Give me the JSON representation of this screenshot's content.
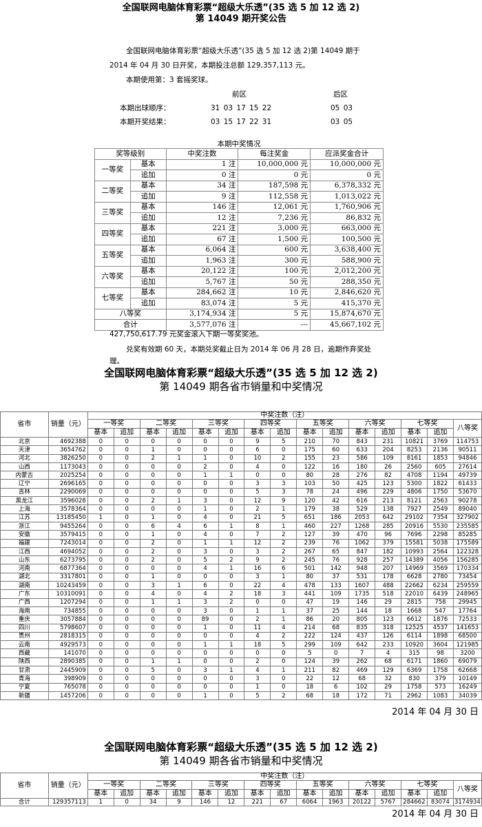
{
  "announcement": {
    "title1": "全国联网电脑体育彩票“超级大乐透”(35 选 5 加 12 选 2)",
    "title2": "第 14049 期开奖公告",
    "para1": "全国联网电脑体育彩票“超级大乐透”(35 选 5 加 12 选 2)第 14049 期于",
    "para2": "2014 年 04 月 30 日开奖，本期投注总额 129,357,113 元。",
    "para3": "本期使用第：3 套摇奖球。",
    "front_label": "前区",
    "back_label": "后区",
    "order_label": "本期出球顺序：",
    "order_front": "31 03 17 15 22",
    "order_back": "05 03",
    "result_label": "本期开奖结果：",
    "result_front": "03 15 17 22 31",
    "result_back": "03 05"
  },
  "prize_table": {
    "caption": "本期中奖情况",
    "headers": [
      "奖等级别",
      "中奖注数",
      "每注奖金",
      "应派奖金合计"
    ],
    "rows": [
      {
        "level": "一等奖",
        "type": "基本",
        "count": "1 注",
        "each": "10,000,000 元",
        "total": "10,000,000 元"
      },
      {
        "level": "一等奖",
        "type": "追加",
        "count": "0 注",
        "each": "0 元",
        "total": "0 元"
      },
      {
        "level": "二等奖",
        "type": "基本",
        "count": "34 注",
        "each": "187,598 元",
        "total": "6,378,332 元"
      },
      {
        "level": "二等奖",
        "type": "追加",
        "count": "9 注",
        "each": "112,558 元",
        "total": "1,013,022 元"
      },
      {
        "level": "三等奖",
        "type": "基本",
        "count": "146 注",
        "each": "12,061 元",
        "total": "1,760,906 元"
      },
      {
        "level": "三等奖",
        "type": "追加",
        "count": "12 注",
        "each": "7,236 元",
        "total": "86,832 元"
      },
      {
        "level": "四等奖",
        "type": "基本",
        "count": "221 注",
        "each": "3,000 元",
        "total": "663,000 元"
      },
      {
        "level": "四等奖",
        "type": "追加",
        "count": "67 注",
        "each": "1,500 元",
        "total": "100,500 元"
      },
      {
        "level": "五等奖",
        "type": "基本",
        "count": "6,064 注",
        "each": "600 元",
        "total": "3,638,400 元"
      },
      {
        "level": "五等奖",
        "type": "追加",
        "count": "1,963 注",
        "each": "300 元",
        "total": "588,900 元"
      },
      {
        "level": "六等奖",
        "type": "基本",
        "count": "20,122 注",
        "each": "100 元",
        "total": "2,012,200 元"
      },
      {
        "level": "六等奖",
        "type": "追加",
        "count": "5,767 注",
        "each": "50 元",
        "total": "288,350 元"
      },
      {
        "level": "七等奖",
        "type": "基本",
        "count": "284,662 注",
        "each": "10 元",
        "total": "2,846,620 元"
      },
      {
        "level": "七等奖",
        "type": "追加",
        "count": "83,074 注",
        "each": "5 元",
        "total": "415,370 元"
      },
      {
        "level": "八等奖",
        "type": "",
        "count": "3,174,934 注",
        "each": "5 元",
        "total": "15,874,670 元"
      },
      {
        "level": "合计",
        "type": "",
        "count": "3,577,076 注",
        "each": "---",
        "total": "45,667,102 元"
      }
    ],
    "pool_note": "427,750,617.79 元奖金滚入下期一等奖奖池。",
    "expiry_note1": "兑奖有效期 60 天，本期兑奖截止日为 2014 年 06 月 28 日，逾期作弃奖处",
    "expiry_note2": "理。"
  },
  "province_section": {
    "title1": "全国联网电脑体育彩票“超级大乐透”(35 选 5 加 12 选 2)",
    "title2": "第 14049 期各省市销量和中奖情况",
    "col_province": "省市",
    "col_sales": "销量（元）",
    "col_group": "中奖注数（注）",
    "levels": [
      "一等奖",
      "二等奖",
      "三等奖",
      "四等奖",
      "五等奖",
      "六等奖",
      "七等奖"
    ],
    "eighth": "八等奖",
    "basic": "基本",
    "extra": "追加",
    "rows": [
      [
        "北京",
        "4692388",
        "0",
        "0",
        "0",
        "0",
        "0",
        "0",
        "9",
        "5",
        "210",
        "70",
        "843",
        "231",
        "10821",
        "3769",
        "114753"
      ],
      [
        "天津",
        "3654762",
        "0",
        "0",
        "1",
        "0",
        "0",
        "0",
        "6",
        "0",
        "175",
        "60",
        "633",
        "204",
        "8253",
        "2136",
        "90511"
      ],
      [
        "河北",
        "3826250",
        "0",
        "0",
        "2",
        "1",
        "1",
        "0",
        "10",
        "2",
        "155",
        "23",
        "586",
        "109",
        "8161",
        "1853",
        "94846"
      ],
      [
        "山西",
        "1173043",
        "0",
        "0",
        "0",
        "0",
        "2",
        "0",
        "4",
        "0",
        "122",
        "16",
        "180",
        "26",
        "2560",
        "605",
        "27614"
      ],
      [
        "内蒙古",
        "2025254",
        "0",
        "0",
        "0",
        "0",
        "1",
        "1",
        "0",
        "0",
        "80",
        "28",
        "276",
        "82",
        "4708",
        "1194",
        "49739"
      ],
      [
        "辽宁",
        "2696165",
        "0",
        "0",
        "0",
        "0",
        "0",
        "0",
        "3",
        "3",
        "103",
        "50",
        "425",
        "123",
        "5300",
        "1822",
        "61433"
      ],
      [
        "吉林",
        "2290069",
        "0",
        "0",
        "0",
        "0",
        "0",
        "0",
        "5",
        "3",
        "78",
        "24",
        "496",
        "229",
        "4806",
        "1750",
        "53670"
      ],
      [
        "黑龙江",
        "3596028",
        "0",
        "0",
        "2",
        "1",
        "3",
        "0",
        "12",
        "9",
        "120",
        "42",
        "616",
        "213",
        "8121",
        "2563",
        "90278"
      ],
      [
        "上海",
        "3578364",
        "0",
        "0",
        "0",
        "0",
        "1",
        "0",
        "2",
        "1",
        "179",
        "38",
        "529",
        "138",
        "7927",
        "2549",
        "89040"
      ],
      [
        "江苏",
        "13185450",
        "1",
        "0",
        "1",
        "0",
        "4",
        "0",
        "21",
        "5",
        "651",
        "186",
        "2053",
        "642",
        "29102",
        "7354",
        "327902"
      ],
      [
        "浙江",
        "9455264",
        "0",
        "0",
        "6",
        "4",
        "6",
        "1",
        "8",
        "1",
        "460",
        "227",
        "1268",
        "285",
        "20916",
        "5530",
        "235585"
      ],
      [
        "安徽",
        "3579415",
        "0",
        "0",
        "1",
        "0",
        "4",
        "0",
        "7",
        "2",
        "127",
        "39",
        "470",
        "96",
        "7696",
        "2298",
        "85285"
      ],
      [
        "福建",
        "7243014",
        "0",
        "0",
        "2",
        "0",
        "1",
        "1",
        "12",
        "2",
        "239",
        "76",
        "1062",
        "379",
        "15581",
        "5038",
        "175589"
      ],
      [
        "江西",
        "4694052",
        "0",
        "0",
        "2",
        "0",
        "3",
        "0",
        "3",
        "2",
        "267",
        "65",
        "847",
        "182",
        "10993",
        "2564",
        "122328"
      ],
      [
        "山东",
        "6273795",
        "0",
        "0",
        "2",
        "0",
        "5",
        "2",
        "9",
        "2",
        "245",
        "76",
        "928",
        "257",
        "14389",
        "4056",
        "156285"
      ],
      [
        "河南",
        "6877364",
        "0",
        "0",
        "0",
        "0",
        "4",
        "1",
        "16",
        "6",
        "501",
        "142",
        "948",
        "207",
        "14969",
        "3569",
        "170334"
      ],
      [
        "湖北",
        "3317801",
        "0",
        "0",
        "1",
        "0",
        "0",
        "0",
        "3",
        "1",
        "80",
        "37",
        "531",
        "178",
        "6628",
        "2780",
        "73454"
      ],
      [
        "湖南",
        "10243459",
        "0",
        "0",
        "3",
        "1",
        "6",
        "0",
        "22",
        "4",
        "478",
        "133",
        "1607",
        "488",
        "22662",
        "6234",
        "259559"
      ],
      [
        "广东",
        "10310091",
        "0",
        "0",
        "4",
        "0",
        "4",
        "2",
        "18",
        "3",
        "441",
        "109",
        "1735",
        "518",
        "22010",
        "6439",
        "248965"
      ],
      [
        "广西",
        "1207294",
        "0",
        "0",
        "1",
        "1",
        "3",
        "2",
        "0",
        "0",
        "47",
        "19",
        "146",
        "29",
        "2815",
        "758",
        "29945"
      ],
      [
        "海南",
        "734855",
        "0",
        "0",
        "0",
        "0",
        "3",
        "0",
        "1",
        "1",
        "37",
        "25",
        "144",
        "18",
        "1668",
        "547",
        "17764"
      ],
      [
        "重庆",
        "3057884",
        "0",
        "0",
        "0",
        "0",
        "89",
        "0",
        "2",
        "1",
        "86",
        "20",
        "805",
        "123",
        "6612",
        "1876",
        "72533"
      ],
      [
        "四川",
        "5798607",
        "0",
        "0",
        "0",
        "0",
        "1",
        "0",
        "11",
        "4",
        "214",
        "68",
        "835",
        "318",
        "12525",
        "4537",
        "141653"
      ],
      [
        "贵州",
        "2818315",
        "0",
        "0",
        "0",
        "0",
        "0",
        "0",
        "4",
        "2",
        "222",
        "124",
        "437",
        "126",
        "6114",
        "1898",
        "68500"
      ],
      [
        "云南",
        "4929573",
        "0",
        "0",
        "0",
        "0",
        "1",
        "1",
        "18",
        "5",
        "299",
        "109",
        "642",
        "233",
        "10920",
        "3604",
        "121985"
      ],
      [
        "西藏",
        "141070",
        "0",
        "0",
        "0",
        "0",
        "0",
        "0",
        "0",
        "0",
        "5",
        "0",
        "7",
        "4",
        "315",
        "98",
        "3200"
      ],
      [
        "陕西",
        "2890385",
        "0",
        "0",
        "1",
        "1",
        "0",
        "0",
        "2",
        "0",
        "124",
        "39",
        "262",
        "68",
        "6171",
        "1860",
        "69079"
      ],
      [
        "甘肃",
        "2445909",
        "0",
        "0",
        "5",
        "0",
        "3",
        "1",
        "4",
        "1",
        "211",
        "82",
        "469",
        "129",
        "6369",
        "1758",
        "62668"
      ],
      [
        "青海",
        "398909",
        "0",
        "0",
        "0",
        "0",
        "0",
        "0",
        "3",
        "0",
        "22",
        "12",
        "68",
        "32",
        "830",
        "379",
        "10149"
      ],
      [
        "宁夏",
        "765078",
        "0",
        "0",
        "0",
        "0",
        "0",
        "0",
        "1",
        "0",
        "18",
        "6",
        "102",
        "29",
        "1758",
        "573",
        "16249"
      ],
      [
        "新疆",
        "1457206",
        "0",
        "0",
        "0",
        "0",
        "1",
        "0",
        "5",
        "2",
        "68",
        "18",
        "172",
        "71",
        "2962",
        "1083",
        "34039"
      ]
    ],
    "date": "2014 年 04 月 30 日"
  },
  "summary_section": {
    "title1": "全国联网电脑体育彩票“超级大乐透”(35 选 5 加 12 选 2)",
    "title2": "第 14049 期各省市销量和中奖情况",
    "rows": [
      [
        "合计",
        "129357113",
        "1",
        "0",
        "34",
        "9",
        "146",
        "12",
        "221",
        "67",
        "6064",
        "1963",
        "20122",
        "5767",
        "284662",
        "83074",
        "3174934"
      ]
    ],
    "date": "2014 年 04 月 30 日"
  }
}
